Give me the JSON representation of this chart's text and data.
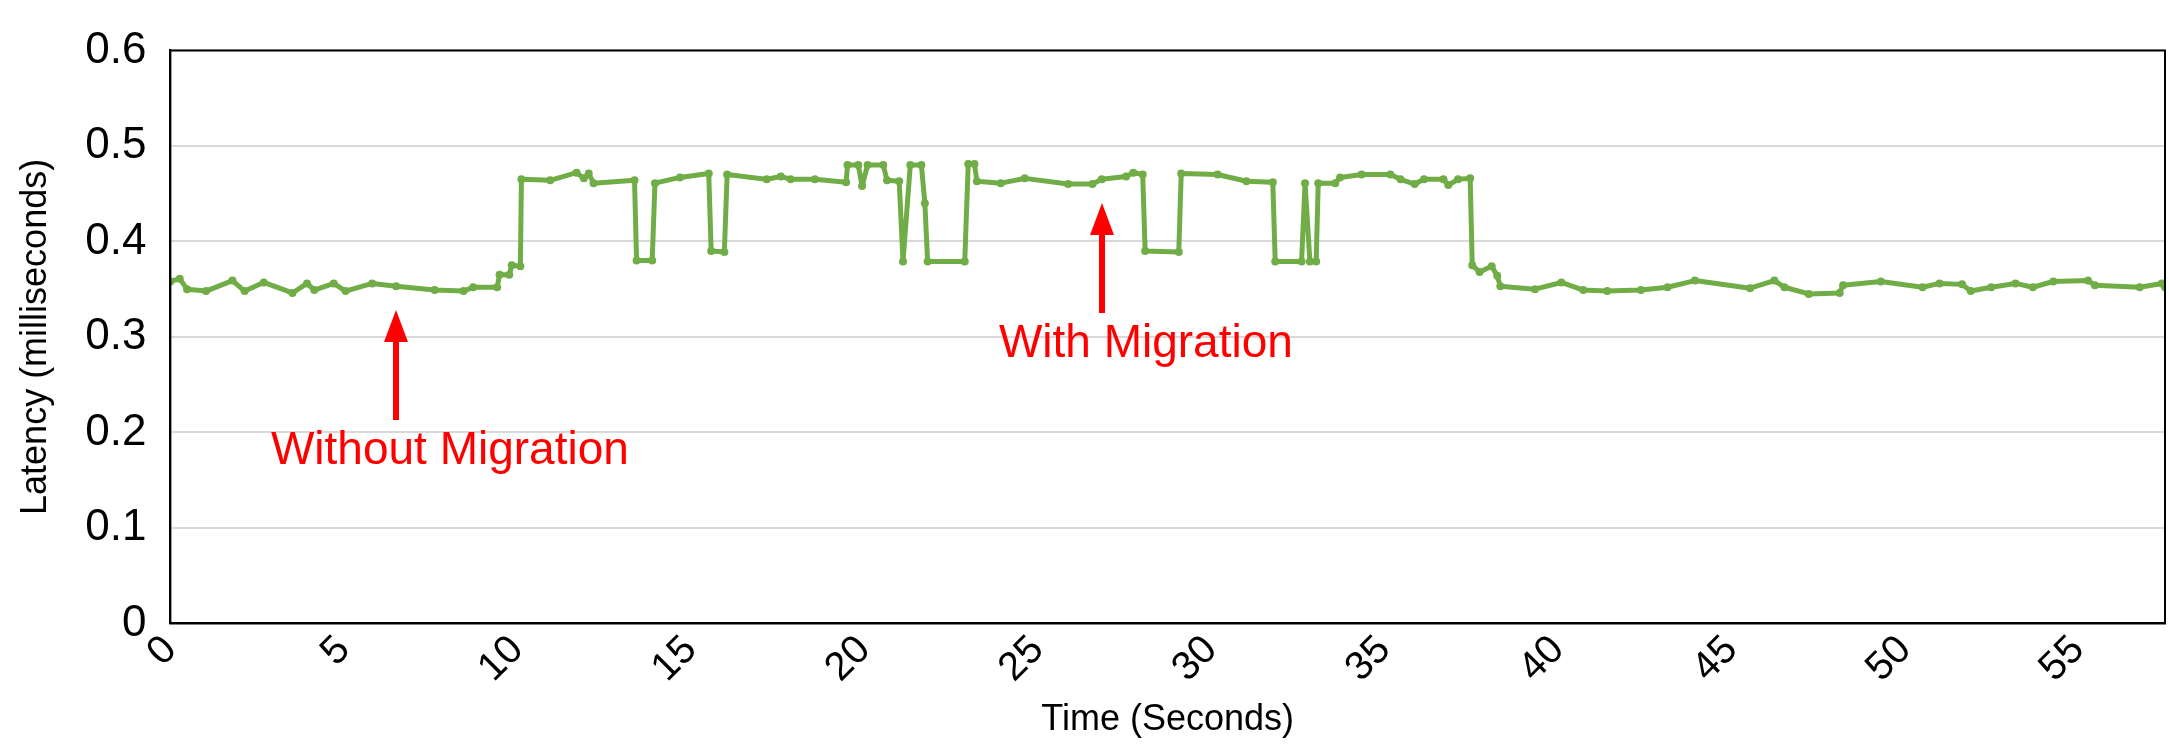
{
  "chart_data": {
    "type": "line",
    "xlabel": "Time (Seconds)",
    "ylabel": "Latency (milliseconds)",
    "xlim": [
      0,
      57.5
    ],
    "xticks": [
      0,
      5,
      10,
      15,
      20,
      25,
      30,
      35,
      40,
      45,
      50,
      55
    ],
    "ylim": [
      0,
      0.6
    ],
    "yticks": [
      0,
      0.1,
      0.2,
      0.3,
      0.4,
      0.5,
      0.6
    ],
    "grid": "y",
    "legend": false,
    "marker": "circle",
    "line_style": "solid",
    "series": [
      {
        "color": "#70ad47",
        "x": [
          0,
          0.27,
          0.48,
          1.03,
          1.79,
          2.14,
          2.69,
          3.52,
          3.94,
          4.15,
          4.71,
          5.05,
          5.82,
          6.51,
          7.62,
          8.45,
          8.73,
          9.42,
          9.49,
          9.77,
          9.84,
          10.09,
          10.12,
          10.95,
          11.71,
          11.92,
          12.06,
          12.2,
          13.38,
          13.44,
          13.89,
          13.97,
          14.69,
          15.52,
          15.59,
          15.97,
          16.05,
          17.19,
          17.6,
          17.88,
          18.58,
          19.48,
          19.52,
          19.83,
          19.94,
          20.1,
          20.55,
          20.66,
          21.01,
          21.12,
          21.33,
          21.65,
          21.75,
          21.83,
          22.9,
          23.0,
          23.18,
          23.25,
          23.94,
          24.63,
          25.88,
          26.58,
          26.85,
          27.55,
          27.76,
          28.03,
          28.1,
          29.07,
          29.14,
          30.19,
          31.02,
          31.78,
          31.85,
          32.61,
          32.71,
          32.85,
          33.03,
          33.09,
          33.58,
          33.72,
          34.34,
          35.17,
          35.46,
          35.87,
          36.14,
          36.7,
          36.84,
          37.12,
          37.47,
          37.53,
          37.74,
          38.09,
          38.25,
          38.34,
          39.34,
          40.1,
          40.73,
          41.42,
          42.39,
          43.16,
          43.95,
          45.54,
          46.24,
          46.53,
          47.23,
          48.12,
          48.22,
          49.31,
          50.51,
          51.0,
          51.65,
          51.9,
          52.49,
          53.19,
          53.69,
          54.28,
          55.28,
          55.48,
          56.77,
          57.41,
          57.5
        ],
        "values": [
          0.358,
          0.361,
          0.35,
          0.348,
          0.359,
          0.348,
          0.357,
          0.346,
          0.356,
          0.349,
          0.356,
          0.348,
          0.356,
          0.353,
          0.349,
          0.348,
          0.352,
          0.352,
          0.365,
          0.365,
          0.375,
          0.374,
          0.465,
          0.464,
          0.472,
          0.466,
          0.471,
          0.461,
          0.464,
          0.38,
          0.38,
          0.461,
          0.467,
          0.471,
          0.39,
          0.389,
          0.47,
          0.465,
          0.468,
          0.465,
          0.465,
          0.462,
          0.48,
          0.48,
          0.458,
          0.48,
          0.48,
          0.464,
          0.463,
          0.379,
          0.48,
          0.48,
          0.44,
          0.379,
          0.379,
          0.481,
          0.481,
          0.463,
          0.461,
          0.466,
          0.46,
          0.46,
          0.465,
          0.468,
          0.472,
          0.47,
          0.39,
          0.389,
          0.471,
          0.47,
          0.463,
          0.462,
          0.379,
          0.379,
          0.461,
          0.379,
          0.379,
          0.461,
          0.461,
          0.467,
          0.47,
          0.47,
          0.465,
          0.46,
          0.465,
          0.465,
          0.459,
          0.465,
          0.466,
          0.375,
          0.368,
          0.374,
          0.364,
          0.353,
          0.35,
          0.357,
          0.349,
          0.348,
          0.349,
          0.352,
          0.359,
          0.351,
          0.359,
          0.352,
          0.345,
          0.346,
          0.354,
          0.358,
          0.352,
          0.356,
          0.355,
          0.348,
          0.352,
          0.356,
          0.352,
          0.358,
          0.359,
          0.354,
          0.352,
          0.356,
          0.352
        ]
      }
    ],
    "annotations": [
      {
        "text": "Without Migration",
        "x": 6.51,
        "y": 0.353
      },
      {
        "text": "With Migration",
        "x": 26.85,
        "y": 0.465
      }
    ]
  }
}
